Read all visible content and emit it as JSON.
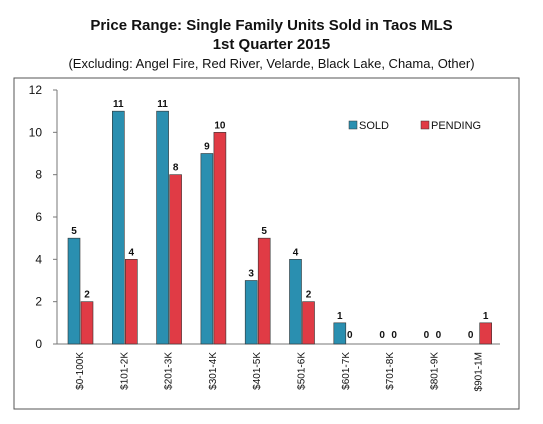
{
  "title": "Price Range:  Single Family Units Sold in Taos MLS",
  "subtitle": "1st Quarter 2015",
  "note": "(Excluding:  Angel Fire, Red River, Velarde, Black Lake, Chama, Other)",
  "chart_data": {
    "type": "bar",
    "categories": [
      "$0-100K",
      "$101-2K",
      "$201-3K",
      "$301-4K",
      "$401-5K",
      "$501-6K",
      "$601-7K",
      "$701-8K",
      "$801-9K",
      "$901-1M"
    ],
    "series": [
      {
        "name": "SOLD",
        "color": "#2a8fb0",
        "values": [
          5,
          11,
          11,
          9,
          3,
          4,
          1,
          0,
          0,
          0
        ]
      },
      {
        "name": "PENDING",
        "color": "#e03b45",
        "values": [
          2,
          4,
          8,
          10,
          5,
          2,
          0,
          0,
          0,
          1
        ]
      }
    ],
    "ylim": [
      0,
      12
    ],
    "yticks": [
      0,
      2,
      4,
      6,
      8,
      10,
      12
    ],
    "grid": false,
    "legend": "top-right"
  }
}
